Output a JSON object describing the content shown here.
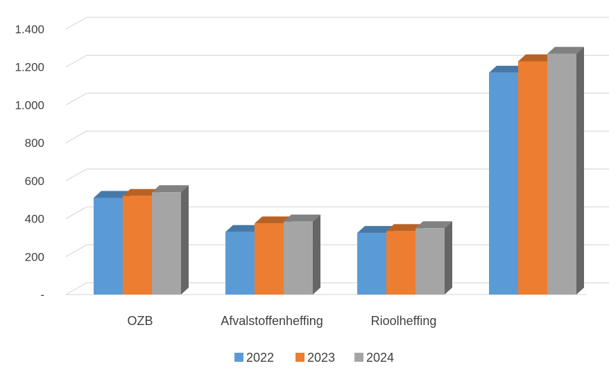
{
  "chart_data": {
    "type": "bar",
    "categories": [
      "OZB",
      "Afvalstoffenheffing",
      "Rioolheffing",
      ""
    ],
    "series": [
      {
        "name": "2022",
        "values": [
          510,
          330,
          325,
          1170
        ],
        "color": "#5B9BD5"
      },
      {
        "name": "2023",
        "values": [
          520,
          375,
          335,
          1230
        ],
        "color": "#ED7D31"
      },
      {
        "name": "2024",
        "values": [
          540,
          385,
          350,
          1270
        ],
        "color": "#A5A5A5"
      }
    ],
    "yticks": [
      "-",
      "200",
      "400",
      "600",
      "800",
      "1.000",
      "1.200",
      "1.400"
    ],
    "ylim": [
      0,
      1400
    ],
    "title": "",
    "xlabel": "",
    "ylabel": "",
    "grid": true,
    "three_d": true,
    "legend_position": "bottom"
  }
}
